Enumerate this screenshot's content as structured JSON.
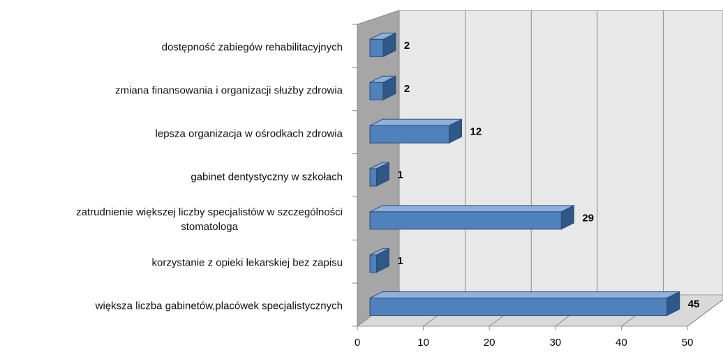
{
  "chart_data": {
    "type": "bar3d_horizontal",
    "categories": [
      "dostępność zabiegów rehabilitacyjnych",
      "zmiana finansowania i organizacji służby zdrowia",
      "lepsza organizacja w ośrodkach zdrowia",
      "gabinet dentystyczny w szkołach",
      "zatrudnienie większej liczby specjalistów w szczególności\nstomatologa",
      "korzystanie z opieki lekarskiej bez zapisu",
      "większa liczba gabinetów,placówek specjalistycznych"
    ],
    "values": [
      2,
      2,
      12,
      1,
      29,
      1,
      45
    ],
    "color": "#4f81bd",
    "xlim": [
      0,
      50
    ],
    "xticks": [
      0,
      10,
      20,
      30,
      40,
      50
    ],
    "grid": true
  }
}
